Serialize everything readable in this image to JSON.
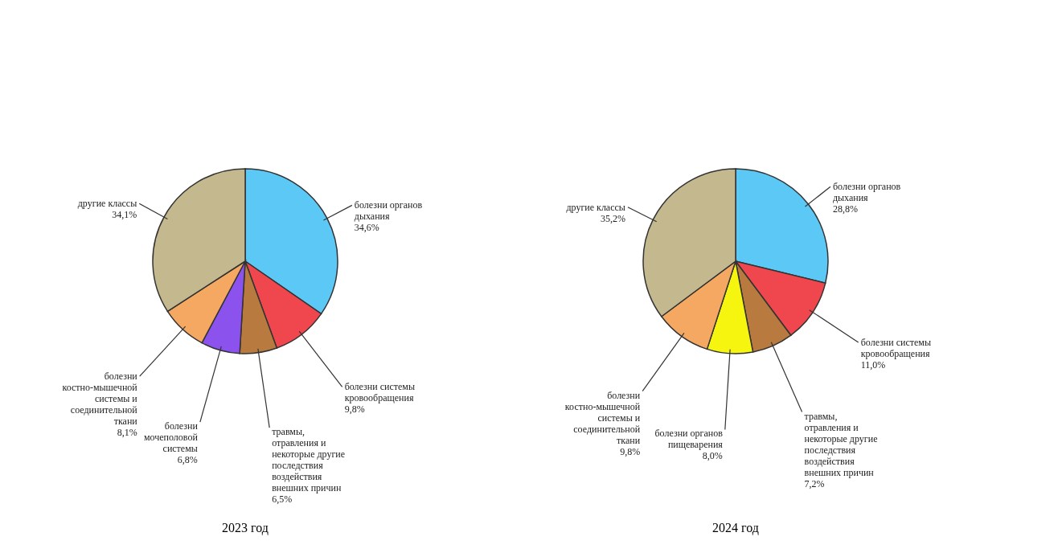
{
  "chart_data": [
    {
      "type": "pie",
      "title": "2023 год",
      "categories": [
        "болезни органов дыхания",
        "болезни системы кровообращения",
        "травмы, отравления и некоторые другие последствия воздействия внешних причин",
        "болезни мочеполовой системы",
        "болезни костно-мышечной системы и соединительной ткани",
        "другие классы"
      ],
      "values": [
        34.6,
        9.8,
        6.5,
        6.8,
        8.1,
        34.1
      ],
      "value_labels": [
        "34,6%",
        "9,8%",
        "6,5%",
        "6,8%",
        "8,1%",
        "34,1%"
      ],
      "colors": [
        "#5bc8f5",
        "#f0474f",
        "#b87a3e",
        "#8c52ee",
        "#f5a862",
        "#c4b88e"
      ]
    },
    {
      "type": "pie",
      "title": "2024 год",
      "categories": [
        "болезни органов дыхания",
        "болезни системы кровообращения",
        "травмы, отравления и некоторые другие последствия воздействия внешних причин",
        "болезни органов пищеварения",
        "болезни костно-мышечной системы и соединительной ткани",
        "другие классы"
      ],
      "values": [
        28.8,
        11.0,
        7.2,
        8.0,
        9.8,
        35.2
      ],
      "value_labels": [
        "28,8%",
        "11,0%",
        "7,2%",
        "8,0%",
        "9,8%",
        "35,2%"
      ],
      "colors": [
        "#5bc8f5",
        "#f0474f",
        "#b87a3e",
        "#f5f50f",
        "#f5a862",
        "#c4b88e"
      ]
    }
  ]
}
